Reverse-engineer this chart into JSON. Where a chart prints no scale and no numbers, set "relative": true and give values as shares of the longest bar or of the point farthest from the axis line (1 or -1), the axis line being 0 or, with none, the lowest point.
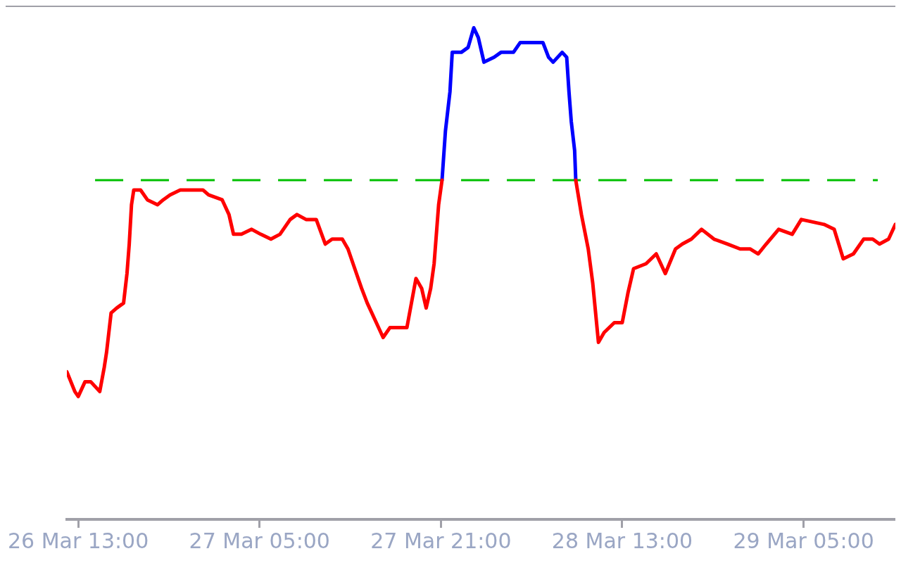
{
  "chart_data": {
    "type": "line",
    "relative": true,
    "xlim": [
      "--03-26T12:00",
      "--03-29T13:06"
    ],
    "xticks": [
      {
        "value": "--03-26T13:00",
        "label": "26 Mar 13:00"
      },
      {
        "value": "--03-27T05:00",
        "label": "27 Mar 05:00"
      },
      {
        "value": "--03-27T21:00",
        "label": "27 Mar 21:00"
      },
      {
        "value": "--03-28T13:00",
        "label": "28 Mar 13:00"
      },
      {
        "value": "--03-29T05:00",
        "label": "29 Mar 05:00"
      }
    ],
    "series": [
      {
        "color": "#ff0000",
        "x": [
          "--03-26T12:00",
          "--03-26T12:42",
          "--03-26T13:00",
          "--03-26T13:36",
          "--03-26T14:06",
          "--03-26T14:30",
          "--03-26T14:54",
          "--03-26T15:18",
          "--03-26T15:30",
          "--03-26T15:54",
          "--03-26T16:24",
          "--03-26T17:00",
          "--03-26T17:18",
          "--03-26T17:30",
          "--03-26T17:42",
          "--03-26T17:54",
          "--03-26T18:30",
          "--03-26T19:06",
          "--03-26T20:00",
          "--03-26T20:30",
          "--03-26T21:06",
          "--03-26T22:00",
          "--03-26T22:48",
          "--03-27T00:00",
          "--03-27T00:30",
          "--03-27T01:42",
          "--03-27T02:18",
          "--03-27T02:42",
          "--03-27T03:24",
          "--03-27T04:18",
          "--03-27T05:06",
          "--03-27T06:00",
          "--03-27T06:48",
          "--03-27T07:42",
          "--03-27T08:18",
          "--03-27T09:06",
          "--03-27T10:00",
          "--03-27T10:48",
          "--03-27T11:24",
          "--03-27T12:18",
          "--03-27T12:48",
          "--03-27T13:24",
          "--03-27T14:00",
          "--03-27T14:30",
          "--03-27T15:18",
          "--03-27T15:54",
          "--03-27T16:30",
          "--03-27T17:24",
          "--03-27T18:00",
          "--03-27T18:24",
          "--03-27T18:48",
          "--03-27T19:18",
          "--03-27T19:42",
          "--03-27T20:06",
          "--03-27T20:24",
          "--03-27T20:48",
          "--03-27T21:06",
          "--03-28T03:00",
          "--03-28T08:54",
          "--03-28T09:24",
          "--03-28T10:00",
          "--03-28T10:24",
          "--03-28T10:54",
          "--03-28T11:24",
          "--03-28T12:18",
          "--03-28T13:00",
          "--03-28T13:30",
          "--03-28T14:00",
          "--03-28T15:06",
          "--03-28T16:00",
          "--03-28T16:24",
          "--03-28T16:48",
          "--03-28T17:42",
          "--03-28T18:18",
          "--03-28T19:06",
          "--03-28T20:00",
          "--03-28T21:06",
          "--03-28T22:18",
          "--03-28T23:24",
          "--03-29T00:18",
          "--03-29T01:00",
          "--03-29T01:42",
          "--03-29T02:48",
          "--03-29T04:00",
          "--03-29T04:48",
          "--03-29T06:48",
          "--03-29T07:42",
          "--03-29T08:30",
          "--03-29T09:24",
          "--03-29T10:18",
          "--03-29T11:06",
          "--03-29T11:42",
          "--03-29T12:30",
          "--03-29T13:06"
        ],
        "values": [
          0.3,
          0.26,
          0.25,
          0.28,
          0.28,
          0.27,
          0.26,
          0.31,
          0.34,
          0.42,
          0.43,
          0.44,
          0.5,
          0.56,
          0.64,
          0.67,
          0.67,
          0.65,
          0.64,
          0.65,
          0.66,
          0.67,
          0.67,
          0.67,
          0.66,
          0.65,
          0.62,
          0.58,
          0.58,
          0.59,
          0.58,
          0.57,
          0.58,
          0.61,
          0.62,
          0.61,
          0.61,
          0.56,
          0.57,
          0.57,
          0.55,
          0.51,
          0.47,
          0.44,
          0.4,
          0.37,
          0.39,
          0.39,
          0.39,
          0.44,
          0.49,
          0.47,
          0.43,
          0.47,
          0.52,
          0.64,
          0.69,
          null,
          0.69,
          0.62,
          0.55,
          0.48,
          0.36,
          0.38,
          0.4,
          0.4,
          0.46,
          0.51,
          0.52,
          0.54,
          0.52,
          0.5,
          0.55,
          0.56,
          0.57,
          0.59,
          0.57,
          0.56,
          0.55,
          0.55,
          0.54,
          0.56,
          0.59,
          0.58,
          0.61,
          0.6,
          0.59,
          0.53,
          0.54,
          0.57,
          0.57,
          0.56,
          0.57,
          0.6
        ]
      },
      {
        "color": "#0000ff",
        "x": [
          "--03-27T21:06",
          "--03-27T21:24",
          "--03-27T21:48",
          "--03-27T22:00",
          "--03-27T22:48",
          "--03-27T23:24",
          "--03-27T23:54",
          "--03-28T00:18",
          "--03-28T00:48",
          "--03-28T01:42",
          "--03-28T02:18",
          "--03-28T03:24",
          "--03-28T04:00",
          "--03-28T06:00",
          "--03-28T06:30",
          "--03-28T06:54",
          "--03-28T07:42",
          "--03-28T08:06",
          "--03-28T08:18",
          "--03-28T08:30",
          "--03-28T08:48",
          "--03-28T08:54"
        ],
        "values": [
          0.69,
          0.79,
          0.87,
          0.95,
          0.95,
          0.96,
          1.0,
          0.98,
          0.93,
          0.94,
          0.95,
          0.95,
          0.97,
          0.97,
          0.94,
          0.93,
          0.95,
          0.94,
          0.87,
          0.81,
          0.75,
          0.69
        ]
      }
    ],
    "ref_lines": [
      {
        "axis": "y",
        "value": 0.69,
        "color": "#00c000",
        "line_style": "dashed"
      }
    ],
    "grid": false,
    "legend": false,
    "marker": "none",
    "line_style": "solid"
  }
}
